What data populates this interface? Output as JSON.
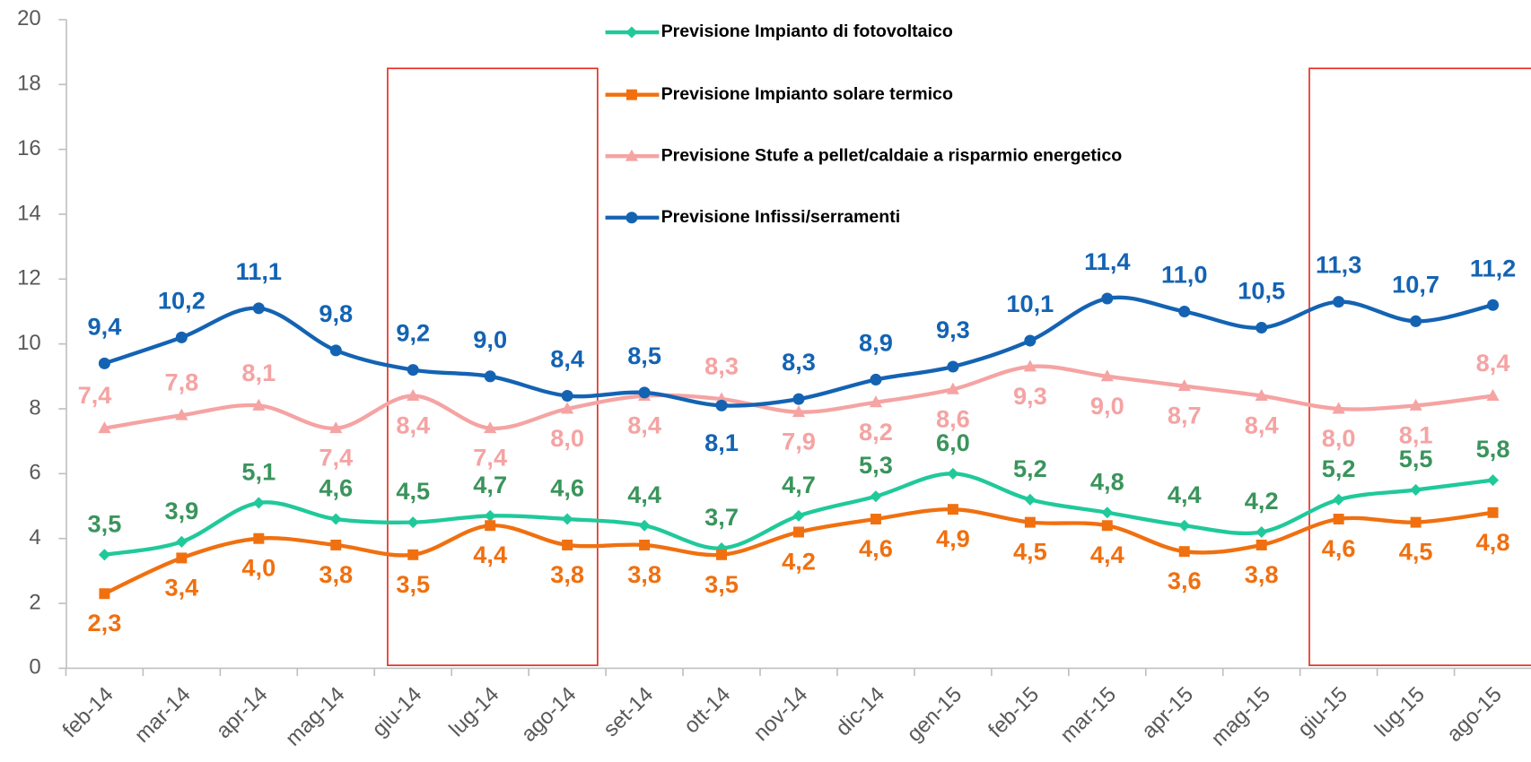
{
  "chart_data": {
    "type": "line",
    "categories": [
      "feb-14",
      "mar-14",
      "apr-14",
      "mag-14",
      "giu-14",
      "lug-14",
      "ago-14",
      "set-14",
      "ott-14",
      "nov-14",
      "dic-14",
      "gen-15",
      "feb-15",
      "mar-15",
      "apr-15",
      "mag-15",
      "giu-15",
      "lug-15",
      "ago-15"
    ],
    "ylim": [
      0,
      20
    ],
    "yticks": [
      0,
      2,
      4,
      6,
      8,
      10,
      12,
      14,
      16,
      18,
      20
    ],
    "series": [
      {
        "name": "Previsione Impianto di fotovoltaico",
        "color": "#20c99a",
        "label_color": "#3a945c",
        "marker": "diamond",
        "values": [
          3.5,
          3.9,
          5.1,
          4.6,
          4.5,
          4.7,
          4.6,
          4.4,
          3.7,
          4.7,
          5.3,
          6.0,
          5.2,
          4.8,
          4.4,
          4.2,
          5.2,
          5.5,
          5.8
        ],
        "value_labels": [
          "3,5",
          "3,9",
          "5,1",
          "4,6",
          "4,5",
          "4,7",
          "4,6",
          "4,4",
          "3,7",
          "4,7",
          "5,3",
          "6,0",
          "5,2",
          "4,8",
          "4,4",
          "4,2",
          "5,2",
          "5,5",
          "5,8"
        ]
      },
      {
        "name": "Previsione Impianto solare termico",
        "color": "#f07010",
        "label_color": "#f07010",
        "marker": "square",
        "values": [
          2.3,
          3.4,
          4.0,
          3.8,
          3.5,
          4.4,
          3.8,
          3.8,
          3.5,
          4.2,
          4.6,
          4.9,
          4.5,
          4.4,
          3.6,
          3.8,
          4.6,
          4.5,
          4.8
        ],
        "value_labels": [
          "2,3",
          "3,4",
          "4,0",
          "3,8",
          "3,5",
          "4,4",
          "3,8",
          "3,8",
          "3,5",
          "4,2",
          "4,6",
          "4,9",
          "4,5",
          "4,4",
          "3,6",
          "3,8",
          "4,6",
          "4,5",
          "4,8"
        ]
      },
      {
        "name": "Previsione Stufe a pellet/caldaie a risparmio energetico",
        "color": "#f5a3a3",
        "label_color": "#f5a3a3",
        "marker": "triangle",
        "values": [
          7.4,
          7.8,
          8.1,
          7.4,
          8.4,
          7.4,
          8.0,
          8.4,
          8.3,
          7.9,
          8.2,
          8.6,
          9.3,
          9.0,
          8.7,
          8.4,
          8.0,
          8.1,
          8.4
        ],
        "value_labels": [
          "7,4",
          "7,8",
          "8,1",
          "7,4",
          "8,4",
          "7,4",
          "8,0",
          "8,4",
          "8,3",
          "7,9",
          "8,2",
          "8,6",
          "9,3",
          "9,0",
          "8,7",
          "8,4",
          "8,0",
          "8,1",
          "8,4"
        ]
      },
      {
        "name": "Previsione Infissi/serramenti",
        "color": "#1463b3",
        "label_color": "#1463b3",
        "marker": "circle",
        "values": [
          9.4,
          10.2,
          11.1,
          9.8,
          9.2,
          9.0,
          8.4,
          8.5,
          8.1,
          8.3,
          8.9,
          9.3,
          10.1,
          11.4,
          11.0,
          10.5,
          11.3,
          10.7,
          11.2
        ],
        "value_labels": [
          "9,4",
          "10,2",
          "11,1",
          "9,8",
          "9,2",
          "9,0",
          "8,4",
          "8,5",
          "8,1",
          "8,3",
          "8,9",
          "9,3",
          "10,1",
          "11,4",
          "11,0",
          "10,5",
          "11,3",
          "10,7",
          "11,2"
        ]
      }
    ]
  }
}
